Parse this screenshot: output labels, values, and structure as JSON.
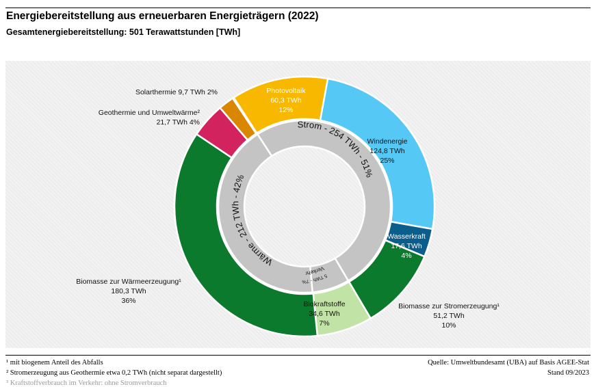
{
  "header": {
    "title": "Energiebereitstellung aus erneuerbaren Energieträgern (2022)",
    "subtitle": "Gesamtenergiebereitstellung:  501  Terawattstunden [TWh]"
  },
  "chart_data": {
    "type": "pie",
    "title": "Energiebereitstellung aus erneuerbaren Energieträgern (2022)",
    "subtitle": "Gesamtenergiebereitstellung:  501  Terawattstunden [TWh]",
    "total": 501,
    "unit": "TWh",
    "outer_ring": [
      {
        "name": "Photovoltaik",
        "value": 60.3,
        "value_label": "60,3 TWh",
        "pct_label": "12%",
        "color": "#f9b800"
      },
      {
        "name": "Windenergie",
        "value": 124.8,
        "value_label": "124,8 TWh",
        "pct_label": "25%",
        "color": "#56c8f5"
      },
      {
        "name": "Wasserkraft",
        "value": 17.6,
        "value_label": "17,6 TWh",
        "pct_label": "4%",
        "color": "#0b5d8c"
      },
      {
        "name": "Biomasse zur Stromerzeugung¹",
        "value": 51.2,
        "value_label": "51,2 TWh",
        "pct_label": "10%",
        "color": "#0b7a2c"
      },
      {
        "name": "Biokraftstoffe",
        "value": 34.6,
        "value_label": "34,6 TWh",
        "pct_label": "7%",
        "color": "#c2e3a6"
      },
      {
        "name": "Biomasse zur Wärmeerzeugung¹",
        "value": 180.3,
        "value_label": "180,3 TWh",
        "pct_label": "36%",
        "color": "#0b7a2c"
      },
      {
        "name": "Geothermie und Umweltwärme²",
        "value": 21.7,
        "value_label": "21,7 TWh",
        "pct_label": "4%",
        "color": "#d3235f"
      },
      {
        "name": "Solarthermie",
        "value": 9.7,
        "value_label": "9,7 TWh",
        "pct_label": "2%",
        "color": "#d98600"
      }
    ],
    "inner_ring": [
      {
        "label": "Strom - 254 TWh - 51%",
        "value": 254,
        "color": "#c4c4c4"
      },
      {
        "label": "Verkehr",
        "sublabel": "35 TWh - 7%",
        "value": 35,
        "color": "#c4c4c4"
      },
      {
        "label": "Wärme - 212 TWh - 42%",
        "value": 212,
        "color": "#c4c4c4"
      }
    ],
    "legend": "none"
  },
  "labels": {
    "solarthermie": "Solarthermie 9,7 TWh 2%",
    "geothermie_1": "Geothermie und Umweltwärme²",
    "geothermie_2": "21,7 TWh 4%",
    "photovoltaik_1": "Photovoltaik",
    "photovoltaik_2": "60,3 TWh",
    "photovoltaik_3": "12%",
    "wind_1": "Windenergie",
    "wind_2": "124,8 TWh",
    "wind_3": "25%",
    "wasser_1": "Wasserkraft",
    "wasser_2": "17,6 TWh",
    "wasser_3": "4%",
    "biostrom_1": "Biomasse zur Stromerzeugung¹",
    "biostrom_2": "51,2 TWh",
    "biostrom_3": "10%",
    "biokraft_1": "Biokraftstoffe",
    "biokraft_2": "34,6 TWh",
    "biokraft_3": "7%",
    "biowaerme_1": "Biomasse zur Wärmeerzeugung¹",
    "biowaerme_2": "180,3 TWh",
    "biowaerme_3": "36%",
    "strom": "Strom - 254 TWh - 51%",
    "waerme": "Wärme - 212 TWh - 42%",
    "verkehr": "Verkehr",
    "verkehr_sub": "35 TWh - 7%"
  },
  "footer": {
    "note1": "¹ mit biogenem Anteil des Abfalls",
    "note2": "² Stromerzeugung aus Geothermie etwa 0,2 TWh (nicht separat dargestellt)",
    "note3": "³ Kraftstoffverbrauch im Verkehr: ohne Stromverbrauch",
    "source": "Quelle:  Umweltbundesamt (UBA) auf Basis AGEE-Stat",
    "stand": "Stand 09/2023"
  }
}
